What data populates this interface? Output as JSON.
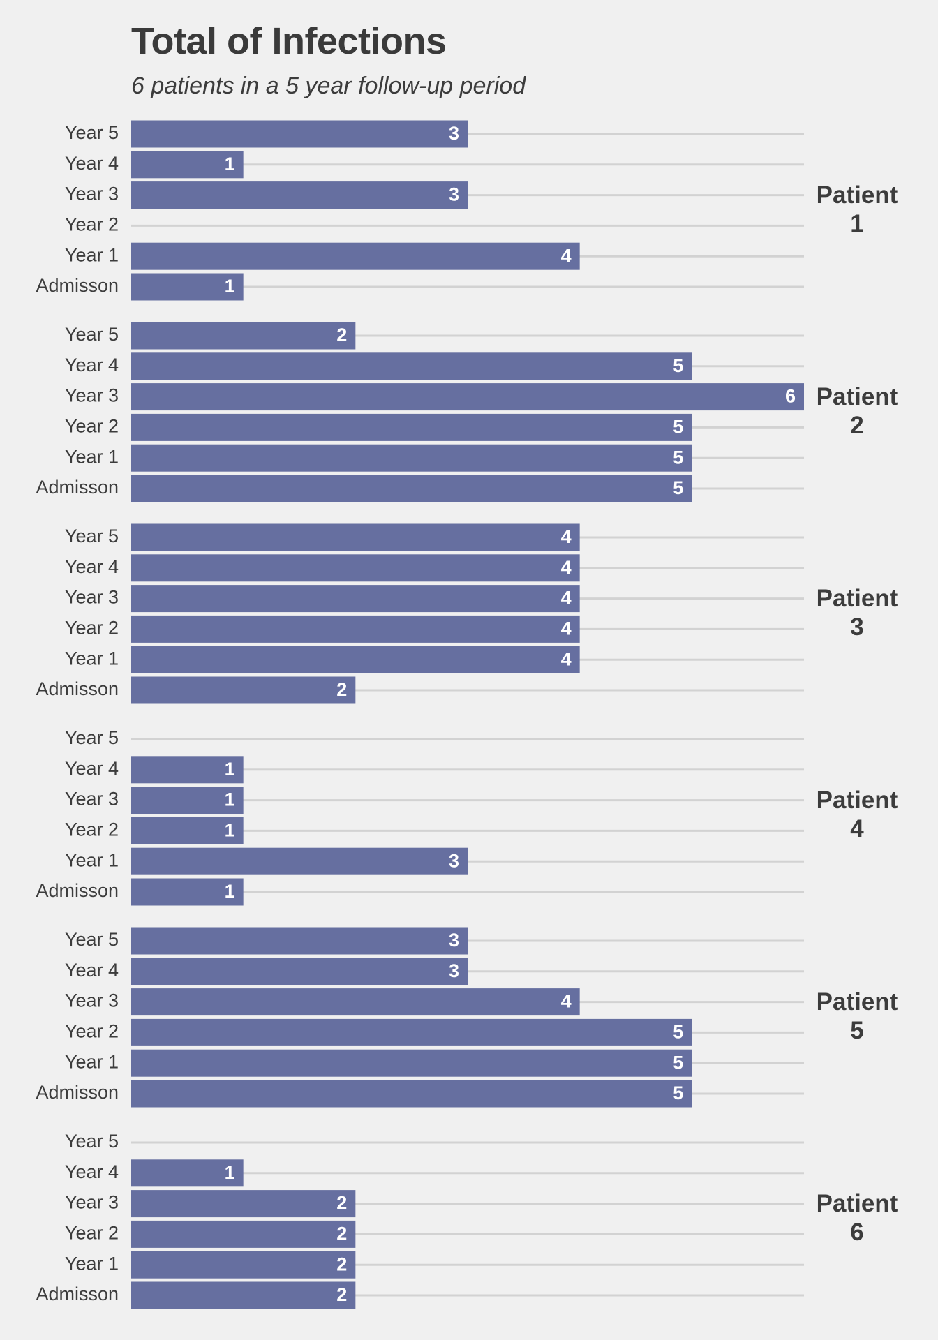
{
  "chart_data": {
    "type": "bar",
    "orientation": "horizontal",
    "title": "Total of Infections",
    "subtitle": "6 patients in a 5 year follow-up period",
    "categories": [
      "Admisson",
      "Year 1",
      "Year 2",
      "Year 3",
      "Year 4",
      "Year 5"
    ],
    "xlim": [
      0,
      6
    ],
    "grid": true,
    "bar_color": "#666fa0",
    "grid_color": "#d2d2d2",
    "background": "#f0f0f0",
    "panels": [
      {
        "label_line1": "Patient",
        "label_line2": "1",
        "values": [
          1,
          4,
          null,
          3,
          1,
          3
        ]
      },
      {
        "label_line1": "Patient",
        "label_line2": "2",
        "values": [
          5,
          5,
          5,
          6,
          5,
          2
        ]
      },
      {
        "label_line1": "Patient",
        "label_line2": "3",
        "values": [
          2,
          4,
          4,
          4,
          4,
          4
        ]
      },
      {
        "label_line1": "Patient",
        "label_line2": "4",
        "values": [
          1,
          3,
          1,
          1,
          1,
          null
        ]
      },
      {
        "label_line1": "Patient",
        "label_line2": "5",
        "values": [
          5,
          5,
          5,
          4,
          3,
          3
        ]
      },
      {
        "label_line1": "Patient",
        "label_line2": "6",
        "values": [
          2,
          2,
          2,
          2,
          1,
          null
        ]
      }
    ]
  }
}
